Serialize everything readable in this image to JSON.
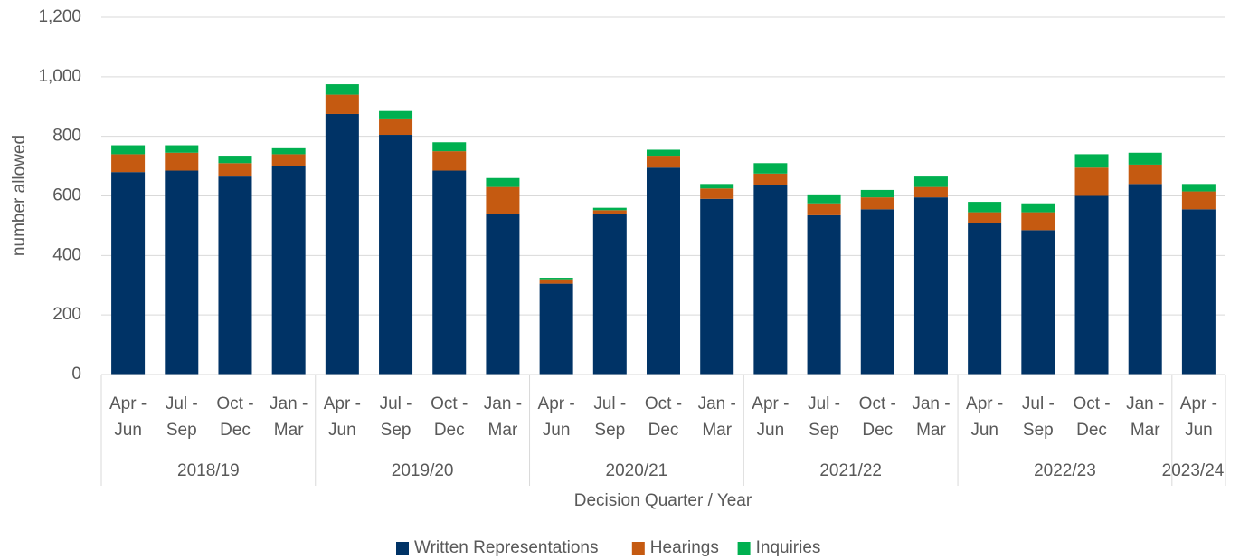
{
  "chart_data": {
    "type": "stacked_bar",
    "y_label": "number allowed",
    "x_label": "Decision Quarter / Year",
    "groups": [
      {
        "label": "2018/19",
        "quarters": [
          [
            "Apr -",
            "Jun"
          ],
          [
            "Jul -",
            "Sep"
          ],
          [
            "Oct -",
            "Dec"
          ],
          [
            "Jan -",
            "Mar"
          ]
        ]
      },
      {
        "label": "2019/20",
        "quarters": [
          [
            "Apr -",
            "Jun"
          ],
          [
            "Jul -",
            "Sep"
          ],
          [
            "Oct -",
            "Dec"
          ],
          [
            "Jan -",
            "Mar"
          ]
        ]
      },
      {
        "label": "2020/21",
        "quarters": [
          [
            "Apr -",
            "Jun"
          ],
          [
            "Jul -",
            "Sep"
          ],
          [
            "Oct -",
            "Dec"
          ],
          [
            "Jan -",
            "Mar"
          ]
        ]
      },
      {
        "label": "2021/22",
        "quarters": [
          [
            "Apr -",
            "Jun"
          ],
          [
            "Jul -",
            "Sep"
          ],
          [
            "Oct -",
            "Dec"
          ],
          [
            "Jan -",
            "Mar"
          ]
        ]
      },
      {
        "label": "2022/23",
        "quarters": [
          [
            "Apr -",
            "Jun"
          ],
          [
            "Jul -",
            "Sep"
          ],
          [
            "Oct -",
            "Dec"
          ],
          [
            "Jan -",
            "Mar"
          ]
        ]
      },
      {
        "label": "2023/24",
        "quarters": [
          [
            "Apr -",
            "Jun"
          ]
        ]
      }
    ],
    "series": [
      {
        "name": "Written Representations",
        "color": "#003366",
        "values": [
          680,
          685,
          665,
          700,
          875,
          805,
          685,
          540,
          305,
          540,
          695,
          590,
          635,
          535,
          555,
          595,
          510,
          485,
          600,
          640,
          555
        ]
      },
      {
        "name": "Hearings",
        "color": "#c55a11",
        "values": [
          60,
          60,
          45,
          40,
          65,
          55,
          65,
          90,
          15,
          12,
          40,
          35,
          40,
          40,
          40,
          35,
          35,
          60,
          95,
          65,
          60
        ]
      },
      {
        "name": "Inquiries",
        "color": "#00b050",
        "values": [
          30,
          25,
          25,
          20,
          35,
          25,
          30,
          30,
          5,
          8,
          20,
          15,
          35,
          30,
          25,
          35,
          35,
          30,
          45,
          40,
          25
        ]
      }
    ],
    "ylim": [
      0,
      1200
    ],
    "yticks": [
      0,
      200,
      400,
      600,
      800,
      {
        "value": 1000,
        "label": "1,000"
      },
      {
        "value": 1200,
        "label": "1,200"
      }
    ],
    "grid": true,
    "legend": "bottom"
  }
}
